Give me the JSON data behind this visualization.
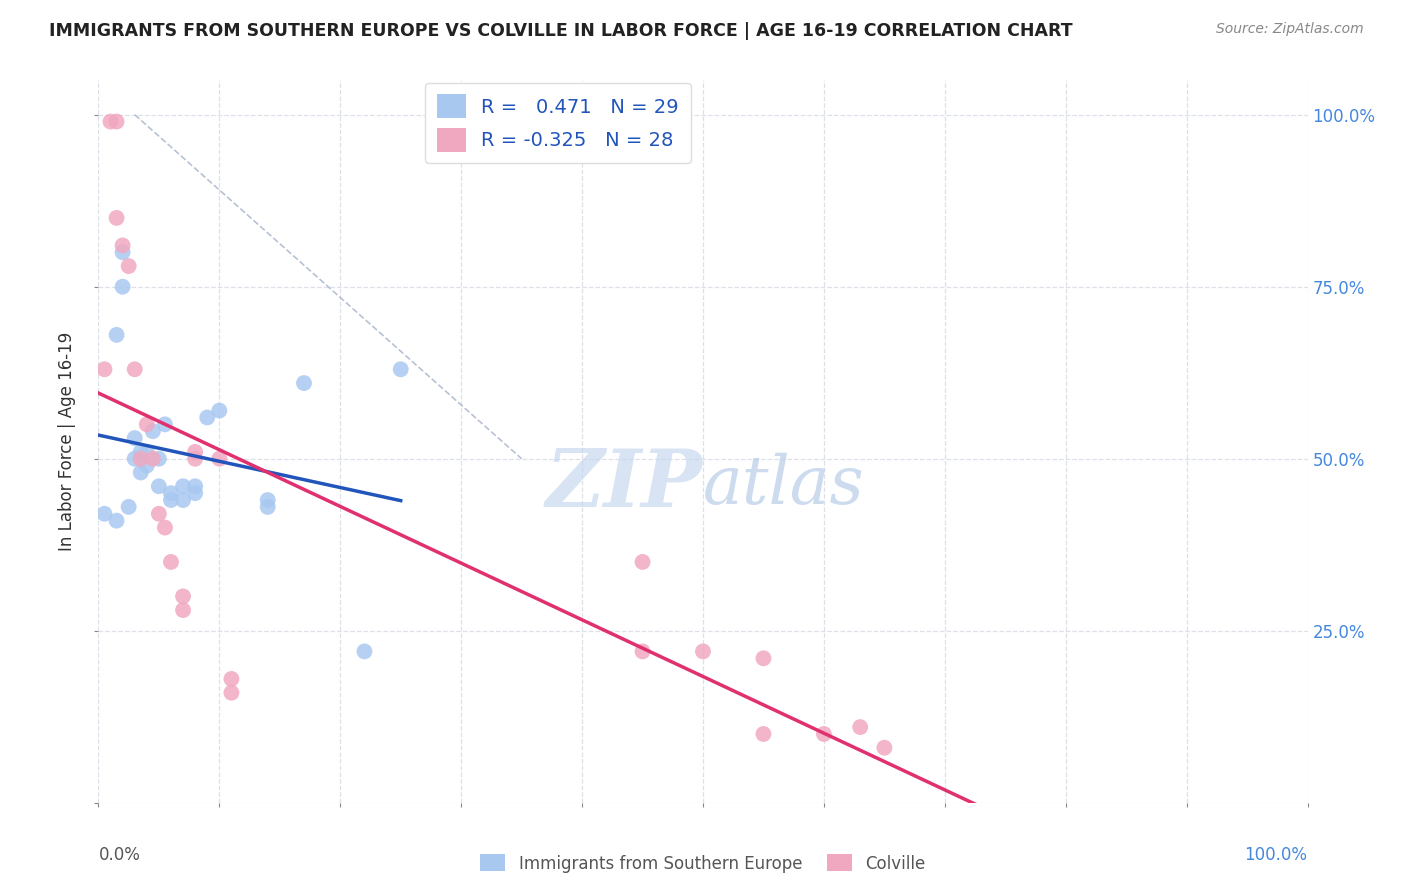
{
  "title": "IMMIGRANTS FROM SOUTHERN EUROPE VS COLVILLE IN LABOR FORCE | AGE 16-19 CORRELATION CHART",
  "source": "Source: ZipAtlas.com",
  "ylabel": "In Labor Force | Age 16-19",
  "legend_labels": [
    "Immigrants from Southern Europe",
    "Colville"
  ],
  "r_blue": 0.471,
  "n_blue": 29,
  "r_pink": -0.325,
  "n_pink": 28,
  "blue_scatter": [
    [
      0.5,
      42.0
    ],
    [
      1.5,
      41.0
    ],
    [
      1.5,
      68.0
    ],
    [
      2.0,
      80.0
    ],
    [
      2.0,
      75.0
    ],
    [
      2.5,
      43.0
    ],
    [
      3.0,
      50.0
    ],
    [
      3.0,
      53.0
    ],
    [
      3.5,
      48.0
    ],
    [
      3.5,
      51.0
    ],
    [
      4.0,
      51.0
    ],
    [
      4.0,
      49.0
    ],
    [
      4.5,
      54.0
    ],
    [
      5.0,
      50.0
    ],
    [
      5.0,
      46.0
    ],
    [
      5.5,
      55.0
    ],
    [
      6.0,
      45.0
    ],
    [
      6.0,
      44.0
    ],
    [
      7.0,
      46.0
    ],
    [
      7.0,
      44.0
    ],
    [
      8.0,
      45.0
    ],
    [
      8.0,
      46.0
    ],
    [
      9.0,
      56.0
    ],
    [
      10.0,
      57.0
    ],
    [
      14.0,
      44.0
    ],
    [
      14.0,
      43.0
    ],
    [
      17.0,
      61.0
    ],
    [
      22.0,
      22.0
    ],
    [
      25.0,
      63.0
    ]
  ],
  "pink_scatter": [
    [
      0.5,
      63.0
    ],
    [
      1.0,
      99.0
    ],
    [
      1.5,
      99.0
    ],
    [
      1.5,
      85.0
    ],
    [
      2.0,
      81.0
    ],
    [
      2.5,
      78.0
    ],
    [
      3.0,
      63.0
    ],
    [
      3.5,
      50.0
    ],
    [
      4.0,
      55.0
    ],
    [
      4.5,
      50.0
    ],
    [
      5.0,
      42.0
    ],
    [
      5.5,
      40.0
    ],
    [
      6.0,
      35.0
    ],
    [
      7.0,
      30.0
    ],
    [
      7.0,
      28.0
    ],
    [
      8.0,
      50.0
    ],
    [
      8.0,
      51.0
    ],
    [
      10.0,
      50.0
    ],
    [
      11.0,
      18.0
    ],
    [
      11.0,
      16.0
    ],
    [
      45.0,
      35.0
    ],
    [
      45.0,
      22.0
    ],
    [
      50.0,
      22.0
    ],
    [
      55.0,
      21.0
    ],
    [
      60.0,
      10.0
    ],
    [
      63.0,
      11.0
    ],
    [
      55.0,
      10.0
    ],
    [
      65.0,
      8.0
    ]
  ],
  "blue_color": "#a8c8f0",
  "blue_line_color": "#2255bb",
  "pink_color": "#f0a8c0",
  "pink_line_color": "#e03070",
  "diagonal_color": "#b0bbd0",
  "background_color": "#ffffff",
  "grid_color": "#dde0e8",
  "marker_size": 130,
  "xlim": [
    0.0,
    100.0
  ],
  "ylim": [
    0.0,
    105.0
  ],
  "watermark_zip": "ZIP",
  "watermark_atlas": "atlas",
  "watermark_color_zip": "#c8d8ef",
  "watermark_color_atlas": "#b8cce8"
}
